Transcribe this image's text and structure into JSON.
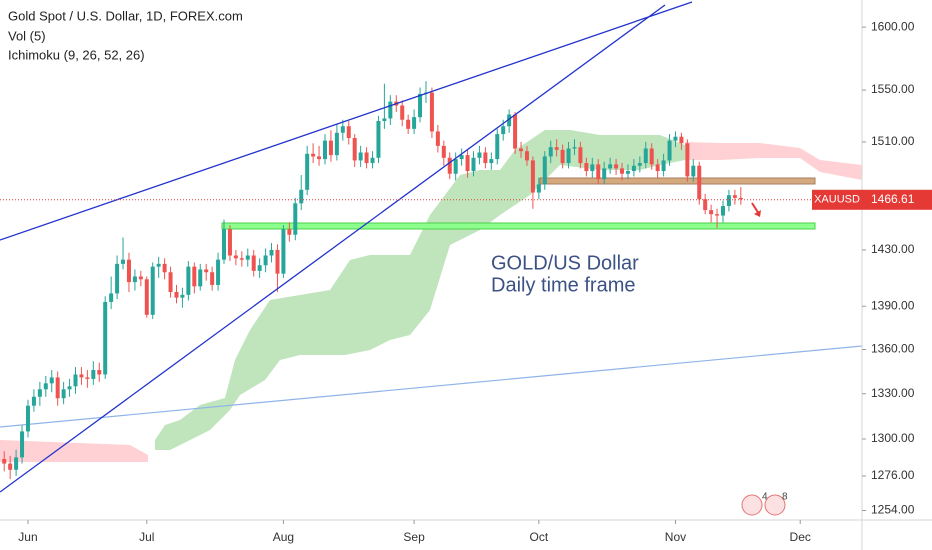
{
  "chart_data": {
    "type": "candlestick",
    "title": "Gold Spot / U.S. Dollar, 1D, FOREX.com",
    "indicators": [
      "Vol (5)",
      "Ichimoku (9, 26, 52, 26)"
    ],
    "annotations": [
      "GOLD/US Dollar",
      "Daily time frame"
    ],
    "symbol": "XAUUSD",
    "last_price": 1466.61,
    "badges": [
      "4",
      "8"
    ],
    "up_color": "#26a69a",
    "down_color": "#ef5350",
    "log_scale": true,
    "ylim": [
      1248,
      1622
    ],
    "yticks": [
      {
        "value": 1254,
        "label": "1254.00"
      },
      {
        "value": 1276,
        "label": "1276.00"
      },
      {
        "value": 1300,
        "label": "1300.00"
      },
      {
        "value": 1330,
        "label": "1330.00"
      },
      {
        "value": 1360,
        "label": "1360.00"
      },
      {
        "value": 1390,
        "label": "1390.00"
      },
      {
        "value": 1430,
        "label": "1430.00"
      },
      {
        "value": 1510,
        "label": "1510.00"
      },
      {
        "value": 1550,
        "label": "1550.00"
      },
      {
        "value": 1600,
        "label": "1600.00"
      }
    ],
    "xlim": [
      -0.71,
      144.4
    ],
    "xticks": [
      {
        "value": 4,
        "label": "Jun"
      },
      {
        "value": 24,
        "label": "Jul"
      },
      {
        "value": 47,
        "label": "Aug"
      },
      {
        "value": 69,
        "label": "Sep"
      },
      {
        "value": 90,
        "label": "Oct"
      },
      {
        "value": 113,
        "label": "Nov"
      },
      {
        "value": 134,
        "label": "Dec"
      }
    ],
    "candles": {
      "open": [
        1287,
        1284,
        1280,
        1288,
        1305,
        1322,
        1328,
        1333,
        1337,
        1341,
        1327,
        1333,
        1335,
        1343,
        1341,
        1340,
        1346,
        1343,
        1393,
        1399,
        1420,
        1423,
        1407,
        1411,
        1409,
        1384,
        1418,
        1420,
        1414,
        1400,
        1396,
        1398,
        1418,
        1404,
        1416,
        1414,
        1405,
        1423,
        1445,
        1426,
        1424,
        1423,
        1426,
        1415,
        1419,
        1426,
        1430,
        1413,
        1445,
        1441,
        1464,
        1474,
        1501,
        1499,
        1497,
        1511,
        1500,
        1517,
        1522,
        1513,
        1496,
        1502,
        1494,
        1498,
        1526,
        1528,
        1541,
        1538,
        1527,
        1520,
        1529,
        1547,
        1548,
        1518,
        1507,
        1498,
        1486,
        1497,
        1500,
        1488,
        1498,
        1502,
        1494,
        1497,
        1516,
        1522,
        1531,
        1505,
        1503,
        1496,
        1472,
        1478,
        1499,
        1506,
        1504,
        1494,
        1505,
        1506,
        1494,
        1488,
        1493,
        1482,
        1490,
        1493,
        1490,
        1486,
        1488,
        1492,
        1494,
        1505,
        1493,
        1488,
        1496,
        1511,
        1514,
        1509,
        1484,
        1492,
        1467,
        1459,
        1456,
        1455,
        1462,
        1470,
        1468
      ],
      "high": [
        1292,
        1289,
        1293,
        1309,
        1326,
        1333,
        1338,
        1342,
        1346,
        1345,
        1338,
        1340,
        1348,
        1348,
        1346,
        1352,
        1351,
        1397,
        1411,
        1426,
        1439,
        1428,
        1416,
        1415,
        1411,
        1421,
        1425,
        1424,
        1418,
        1405,
        1403,
        1422,
        1421,
        1420,
        1420,
        1418,
        1428,
        1452,
        1448,
        1430,
        1429,
        1431,
        1430,
        1424,
        1431,
        1435,
        1434,
        1448,
        1450,
        1468,
        1485,
        1507,
        1509,
        1507,
        1516,
        1519,
        1524,
        1527,
        1526,
        1516,
        1507,
        1506,
        1503,
        1530,
        1555,
        1546,
        1546,
        1542,
        1531,
        1535,
        1552,
        1557,
        1552,
        1523,
        1511,
        1502,
        1502,
        1505,
        1504,
        1503,
        1507,
        1506,
        1502,
        1520,
        1527,
        1535,
        1533,
        1510,
        1507,
        1499,
        1483,
        1503,
        1511,
        1512,
        1508,
        1510,
        1512,
        1510,
        1498,
        1498,
        1497,
        1495,
        1498,
        1497,
        1494,
        1493,
        1497,
        1499,
        1510,
        1509,
        1497,
        1501,
        1516,
        1518,
        1517,
        1512,
        1497,
        1495,
        1471,
        1463,
        1460,
        1466,
        1474,
        1474,
        1476
      ],
      "low": [
        1279,
        1274,
        1276,
        1284,
        1301,
        1318,
        1322,
        1328,
        1331,
        1322,
        1323,
        1328,
        1330,
        1336,
        1334,
        1336,
        1338,
        1340,
        1388,
        1395,
        1416,
        1400,
        1401,
        1404,
        1382,
        1381,
        1410,
        1409,
        1396,
        1392,
        1389,
        1394,
        1399,
        1401,
        1408,
        1401,
        1401,
        1420,
        1422,
        1419,
        1418,
        1418,
        1411,
        1410,
        1414,
        1421,
        1400,
        1410,
        1436,
        1437,
        1459,
        1470,
        1494,
        1492,
        1493,
        1495,
        1496,
        1511,
        1508,
        1491,
        1491,
        1490,
        1490,
        1494,
        1520,
        1523,
        1533,
        1522,
        1516,
        1516,
        1525,
        1540,
        1513,
        1502,
        1492,
        1482,
        1481,
        1492,
        1483,
        1484,
        1493,
        1490,
        1489,
        1493,
        1511,
        1517,
        1501,
        1498,
        1492,
        1460,
        1467,
        1474,
        1494,
        1499,
        1490,
        1490,
        1500,
        1490,
        1484,
        1483,
        1478,
        1478,
        1486,
        1485,
        1481,
        1482,
        1484,
        1487,
        1490,
        1489,
        1483,
        1484,
        1492,
        1506,
        1504,
        1480,
        1480,
        1463,
        1456,
        1450,
        1446,
        1450,
        1458,
        1463,
        1463
      ],
      "close": [
        1284,
        1280,
        1288,
        1305,
        1322,
        1328,
        1333,
        1337,
        1341,
        1327,
        1333,
        1335,
        1343,
        1341,
        1340,
        1346,
        1343,
        1393,
        1399,
        1420,
        1423,
        1407,
        1411,
        1409,
        1384,
        1418,
        1420,
        1414,
        1400,
        1396,
        1398,
        1418,
        1404,
        1416,
        1414,
        1405,
        1423,
        1445,
        1426,
        1424,
        1423,
        1426,
        1415,
        1419,
        1426,
        1430,
        1413,
        1445,
        1441,
        1464,
        1474,
        1501,
        1499,
        1497,
        1511,
        1500,
        1517,
        1522,
        1513,
        1496,
        1502,
        1494,
        1498,
        1526,
        1528,
        1541,
        1538,
        1527,
        1520,
        1529,
        1547,
        1548,
        1518,
        1507,
        1498,
        1486,
        1497,
        1500,
        1488,
        1498,
        1502,
        1494,
        1497,
        1516,
        1522,
        1531,
        1505,
        1503,
        1496,
        1472,
        1478,
        1499,
        1506,
        1504,
        1494,
        1505,
        1506,
        1494,
        1488,
        1493,
        1482,
        1490,
        1493,
        1490,
        1486,
        1488,
        1492,
        1494,
        1505,
        1493,
        1488,
        1496,
        1511,
        1514,
        1509,
        1484,
        1492,
        1467,
        1459,
        1456,
        1455,
        1462,
        1470,
        1468,
        1467
      ]
    }
  }
}
